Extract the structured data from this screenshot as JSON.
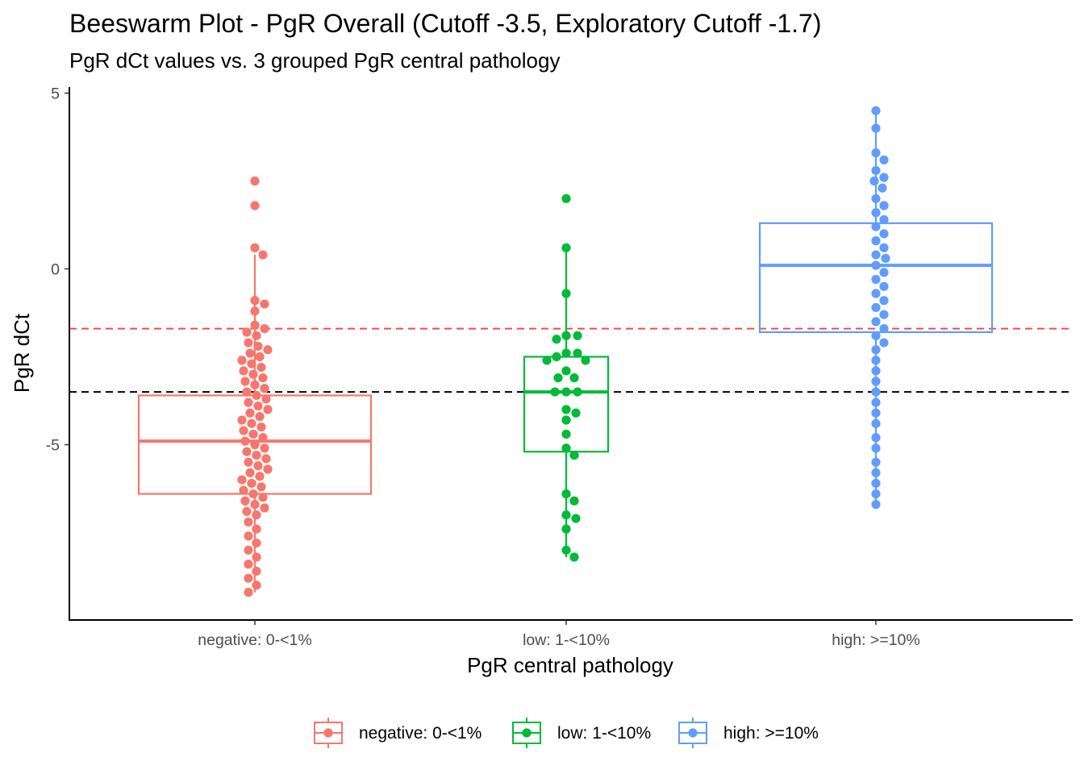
{
  "chart_data": {
    "type": "scatter",
    "subtype": "beeswarm-with-boxplot",
    "title": "Beeswarm Plot - PgR Overall (Cutoff -3.5, Exploratory Cutoff -1.7)",
    "subtitle": "PgR dCt values vs. 3 grouped PgR central pathology",
    "xlabel": "PgR central pathology",
    "ylabel": "PgR dCt",
    "ylim": [
      -9.7,
      5.3
    ],
    "yticks": [
      5,
      0,
      -5
    ],
    "ytick_labels": [
      "5",
      "0",
      "-5"
    ],
    "categories": [
      "negative: 0-<1%",
      "low: 1-<10%",
      "high: >=10%"
    ],
    "reference_lines": [
      {
        "y": -1.7,
        "color": "#F8766D",
        "style": "dashed"
      },
      {
        "y": -3.5,
        "color": "#000000",
        "style": "dashed"
      }
    ],
    "legend": {
      "position": "bottom",
      "entries": [
        "negative: 0-<1%",
        "low: 1-<10%",
        "high: >=10%"
      ]
    },
    "series": [
      {
        "name": "negative: 0-<1%",
        "color": "#F8766D",
        "box": {
          "q1": -6.4,
          "median": -4.9,
          "q3": -3.6,
          "whisker_low": -9.2,
          "whisker_high": 0.4
        },
        "values": [
          2.5,
          1.8,
          0.6,
          0.4,
          -0.9,
          -1.0,
          -1.2,
          -1.6,
          -1.7,
          -1.8,
          -1.9,
          -2.1,
          -2.2,
          -2.3,
          -2.4,
          -2.5,
          -2.6,
          -2.7,
          -2.8,
          -2.9,
          -3.0,
          -3.1,
          -3.2,
          -3.3,
          -3.4,
          -3.5,
          -3.6,
          -3.7,
          -3.8,
          -3.9,
          -4.0,
          -4.1,
          -4.2,
          -4.3,
          -4.4,
          -4.5,
          -4.6,
          -4.7,
          -4.8,
          -4.9,
          -5.0,
          -5.1,
          -5.2,
          -5.3,
          -5.4,
          -5.5,
          -5.6,
          -5.7,
          -5.8,
          -5.9,
          -6.0,
          -6.1,
          -6.2,
          -6.3,
          -6.4,
          -6.5,
          -6.6,
          -6.7,
          -6.8,
          -6.9,
          -7.0,
          -7.2,
          -7.4,
          -7.6,
          -7.8,
          -8.0,
          -8.2,
          -8.4,
          -8.6,
          -8.8,
          -9.0,
          -9.2
        ]
      },
      {
        "name": "low: 1-<10%",
        "color": "#00BA38",
        "box": {
          "q1": -5.2,
          "median": -3.5,
          "q3": -2.5,
          "whisker_low": -8.2,
          "whisker_high": 0.6
        },
        "values": [
          2.0,
          0.6,
          -0.7,
          -1.9,
          -1.9,
          -2.0,
          -2.4,
          -2.4,
          -2.5,
          -2.6,
          -2.6,
          -2.9,
          -3.1,
          -3.1,
          -3.5,
          -3.5,
          -3.5,
          -4.0,
          -4.1,
          -4.3,
          -4.7,
          -5.1,
          -5.3,
          -6.4,
          -6.6,
          -7.0,
          -7.1,
          -7.4,
          -8.0,
          -8.2
        ]
      },
      {
        "name": "high: >=10%",
        "color": "#619CFF",
        "box": {
          "q1": -1.8,
          "median": 0.1,
          "q3": 1.3,
          "whisker_low": -6.7,
          "whisker_high": 4.5
        },
        "values": [
          4.5,
          4.0,
          3.3,
          3.1,
          2.8,
          2.6,
          2.5,
          2.3,
          2.0,
          1.8,
          1.6,
          1.4,
          1.2,
          1.0,
          0.8,
          0.6,
          0.4,
          0.3,
          0.1,
          -0.1,
          -0.3,
          -0.5,
          -0.7,
          -0.9,
          -1.1,
          -1.3,
          -1.5,
          -1.7,
          -1.9,
          -2.1,
          -2.3,
          -2.6,
          -2.9,
          -3.2,
          -3.5,
          -3.8,
          -4.1,
          -4.4,
          -4.8,
          -5.1,
          -5.5,
          -5.8,
          -6.1,
          -6.4,
          -6.7
        ]
      }
    ]
  }
}
